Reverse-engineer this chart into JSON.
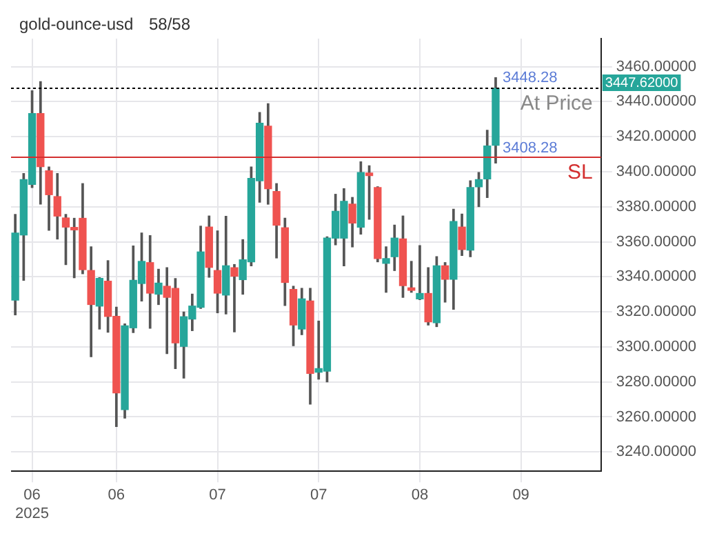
{
  "chart_data": {
    "type": "candlestick",
    "title": "gold-ounce-usd",
    "subtitle": "58/58",
    "categories": [
      null,
      null,
      "06\n2025",
      null,
      null,
      null,
      null,
      null,
      null,
      null,
      null,
      null,
      "06",
      null,
      null,
      null,
      null,
      null,
      null,
      null,
      null,
      null,
      null,
      null,
      "07",
      null,
      null,
      null,
      null,
      null,
      null,
      null,
      null,
      null,
      null,
      null,
      "07",
      null,
      null,
      null,
      null,
      null,
      null,
      null,
      null,
      null,
      null,
      null,
      "08",
      null,
      null,
      null,
      null,
      null,
      null,
      null,
      null,
      null,
      null,
      null,
      "09",
      null,
      null,
      null,
      null,
      null,
      null,
      null,
      null,
      null
    ],
    "ohlc": [
      [
        3326.7,
        3375.6,
        3318.3,
        3365.0
      ],
      [
        3363.9,
        3398.9,
        3338.0,
        3395.5
      ],
      [
        3392.8,
        3446.2,
        3391.0,
        3433.2
      ],
      [
        3433.2,
        3451.4,
        3381.5,
        3402.9
      ],
      [
        3400.5,
        3402.7,
        3366.6,
        3386.9
      ],
      [
        3385.8,
        3398.9,
        3361.6,
        3374.7
      ],
      [
        3373.6,
        3375.6,
        3347.0,
        3368.4
      ],
      [
        3368.2,
        3373.4,
        3339.5,
        3366.8
      ],
      [
        3373.4,
        3393.2,
        3341.8,
        3344.1
      ],
      [
        3343.6,
        3357.1,
        3294.4,
        3324.2
      ],
      [
        3323.3,
        3339.5,
        3310.2,
        3339.1
      ],
      [
        3337.5,
        3349.2,
        3308.4,
        3317.4
      ],
      [
        3317.4,
        3322.6,
        3254.5,
        3273.7
      ],
      [
        3264.2,
        3313.1,
        3259.4,
        3312.0
      ],
      [
        3310.9,
        3357.6,
        3308.2,
        3338.0
      ],
      [
        3336.2,
        3365.0,
        3326.2,
        3348.8
      ],
      [
        3348.1,
        3363.5,
        3310.7,
        3330.7
      ],
      [
        3330.1,
        3344.3,
        3324.2,
        3336.4
      ],
      [
        3334.6,
        3345.2,
        3296.2,
        3328.3
      ],
      [
        3333.4,
        3339.0,
        3287.6,
        3302.3
      ],
      [
        3300.3,
        3319.9,
        3282.2,
        3317.2
      ],
      [
        3315.9,
        3330.1,
        3309.3,
        3323.3
      ],
      [
        3322.6,
        3368.9,
        3322.0,
        3354.2
      ],
      [
        3368.4,
        3374.7,
        3339.8,
        3345.4
      ],
      [
        3343.6,
        3366.2,
        3319.5,
        3330.7
      ],
      [
        3329.6,
        3374.5,
        3318.8,
        3346.3
      ],
      [
        3345.2,
        3347.0,
        3308.6,
        3340.4
      ],
      [
        3338.4,
        3361.2,
        3330.1,
        3349.7
      ],
      [
        3348.6,
        3402.7,
        3346.3,
        3396.2
      ],
      [
        3394.8,
        3433.8,
        3382.6,
        3427.7
      ],
      [
        3426.0,
        3438.8,
        3381.5,
        3390.3
      ],
      [
        3388.7,
        3393.2,
        3350.8,
        3369.5
      ],
      [
        3368.0,
        3373.4,
        3323.7,
        3336.8
      ],
      [
        3332.8,
        3334.6,
        3300.7,
        3312.5
      ],
      [
        3310.2,
        3333.4,
        3307.0,
        3327.4
      ],
      [
        3326.2,
        3333.4,
        3267.3,
        3284.9
      ],
      [
        3285.6,
        3314.7,
        3281.6,
        3287.6
      ],
      [
        3286.1,
        3362.8,
        3280.0,
        3362.1
      ],
      [
        3362.1,
        3387.1,
        3358.3,
        3377.4
      ],
      [
        3362.1,
        3390.3,
        3346.3,
        3383.1
      ],
      [
        3381.5,
        3385.3,
        3357.1,
        3370.7
      ],
      [
        3368.4,
        3405.6,
        3364.4,
        3399.5
      ],
      [
        3399.2,
        3403.4,
        3372.9,
        3397.8
      ],
      [
        3391.0,
        3391.4,
        3348.6,
        3350.4
      ],
      [
        3347.7,
        3357.1,
        3331.2,
        3350.4
      ],
      [
        3351.5,
        3369.5,
        3343.6,
        3362.1
      ],
      [
        3361.6,
        3374.7,
        3328.3,
        3335.0
      ],
      [
        3333.7,
        3348.8,
        3331.2,
        3332.3
      ],
      [
        3327.4,
        3357.8,
        3327.0,
        3330.5
      ],
      [
        3330.5,
        3345.2,
        3312.5,
        3314.3
      ],
      [
        3313.8,
        3351.5,
        3311.6,
        3346.3
      ],
      [
        3346.3,
        3348.1,
        3325.6,
        3338.6
      ],
      [
        3338.6,
        3378.6,
        3321.5,
        3371.6
      ],
      [
        3368.4,
        3375.8,
        3352.2,
        3355.6
      ],
      [
        3355.3,
        3394.8,
        3351.5,
        3391.0
      ],
      [
        3391.4,
        3399.5,
        3380.1,
        3395.5
      ],
      [
        3395.9,
        3423.7,
        3385.3,
        3414.7
      ],
      [
        3415.1,
        3453.7,
        3405.0,
        3447.62
      ],
      null,
      null,
      null,
      null,
      null,
      null,
      null,
      null,
      null,
      null,
      null,
      null
    ],
    "ylim": [
      3229,
      3476
    ],
    "yticks": [
      {
        "value": 3240,
        "label": "3240.00000"
      },
      {
        "value": 3260,
        "label": "3260.00000"
      },
      {
        "value": 3280,
        "label": "3280.00000"
      },
      {
        "value": 3300,
        "label": "3300.00000"
      },
      {
        "value": 3320,
        "label": "3320.00000"
      },
      {
        "value": 3340,
        "label": "3340.00000"
      },
      {
        "value": 3360,
        "label": "3360.00000"
      },
      {
        "value": 3380,
        "label": "3380.00000"
      },
      {
        "value": 3400,
        "label": "3400.00000"
      },
      {
        "value": 3420,
        "label": "3420.00000"
      },
      {
        "value": 3440,
        "label": "3440.00000"
      },
      {
        "value": 3460,
        "label": "3460.00000"
      }
    ],
    "ref_lines": [
      {
        "axis": "y",
        "value": 3447.62,
        "label": "At Price",
        "color": "#000000",
        "line_style": "dotted"
      },
      {
        "axis": "y",
        "value": 3408.28,
        "label": "SL",
        "color": "#d32f2f"
      }
    ],
    "annotations": [
      {
        "text": "3448.28",
        "y": 3448.28
      },
      {
        "text": "3408.28",
        "y": 3408.28
      },
      "3447.62000"
    ],
    "grid": true,
    "legend": false
  }
}
